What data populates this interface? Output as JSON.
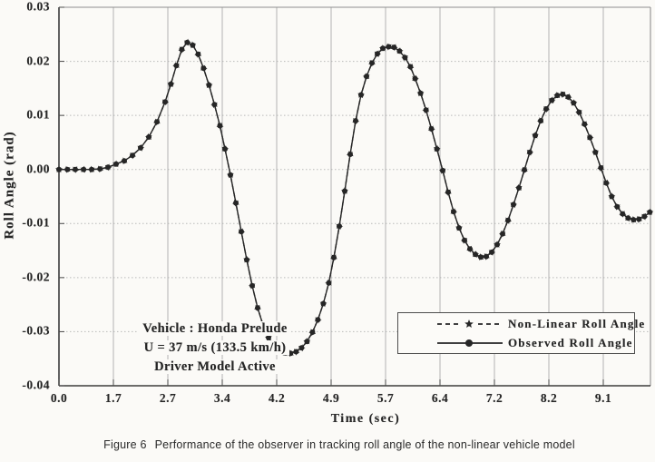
{
  "figure": {
    "label": "Figure 6",
    "caption": "Performance of the observer in tracking roll angle of the non-linear vehicle model"
  },
  "chart_data": {
    "type": "line",
    "title": "",
    "xlabel": "Time (sec)",
    "ylabel": "Roll Angle (rad)",
    "x_tick_labels": [
      "0.0",
      "1.7",
      "2.7",
      "3.4",
      "4.2",
      "4.9",
      "5.7",
      "6.4",
      "7.2",
      "8.2",
      "9.1"
    ],
    "y_tick_labels": [
      "0.03",
      "0.02",
      "0.01",
      "0.00",
      "-0.01",
      "-0.02",
      "-0.03",
      "-0.04"
    ],
    "ylim": [
      -0.04,
      0.03
    ],
    "grid": true,
    "legend_position": "inside lower right",
    "ink_color": "#262626",
    "grid_color": "#ababab",
    "annotation": {
      "lines": [
        "Vehicle : Honda Prelude",
        "U = 37 m/s (133.5 km/h)",
        "Driver Model Active"
      ]
    },
    "x_sec": [
      0.0,
      0.26,
      0.51,
      0.77,
      1.02,
      1.28,
      1.53,
      1.75,
      1.9,
      2.05,
      2.2,
      2.35,
      2.5,
      2.65,
      2.74,
      2.81,
      2.88,
      2.95,
      3.02,
      3.09,
      3.16,
      3.23,
      3.3,
      3.37,
      3.44,
      3.52,
      3.6,
      3.68,
      3.76,
      3.84,
      3.92,
      4.0,
      4.08,
      4.16,
      4.24,
      4.31,
      4.38,
      4.45,
      4.52,
      4.59,
      4.66,
      4.73,
      4.8,
      4.87,
      4.94,
      5.02,
      5.1,
      5.18,
      5.26,
      5.34,
      5.42,
      5.5,
      5.58,
      5.66,
      5.74,
      5.81,
      5.88,
      5.95,
      6.02,
      6.08,
      6.15,
      6.22,
      6.29,
      6.36,
      6.44,
      6.52,
      6.6,
      6.68,
      6.76,
      6.84,
      6.92,
      7.0,
      7.08,
      7.16,
      7.25,
      7.35,
      7.45,
      7.55,
      7.65,
      7.75,
      7.85,
      7.95,
      8.05,
      8.15,
      8.25,
      8.34,
      8.43,
      8.52,
      8.61,
      8.7,
      8.79,
      8.88,
      8.97,
      9.06,
      9.15,
      9.24,
      9.33,
      9.42,
      9.51,
      9.6,
      9.69,
      9.78,
      9.87
    ],
    "series": [
      {
        "name": "Non-Linear Roll Angle",
        "line_style": "dashed",
        "marker": "star",
        "color": "#262626",
        "values": [
          0.0,
          0.0,
          0.0,
          0.0,
          0.0,
          0.0001,
          0.0004,
          0.001,
          0.0016,
          0.0026,
          0.004,
          0.006,
          0.0088,
          0.0125,
          0.0158,
          0.0192,
          0.0222,
          0.0235,
          0.023,
          0.0213,
          0.0187,
          0.0156,
          0.012,
          0.0081,
          0.0038,
          -0.001,
          -0.0062,
          -0.0115,
          -0.0167,
          -0.0215,
          -0.0256,
          -0.0288,
          -0.0311,
          -0.0326,
          -0.0335,
          -0.0339,
          -0.034,
          -0.0337,
          -0.033,
          -0.0318,
          -0.0301,
          -0.0278,
          -0.0248,
          -0.021,
          -0.0163,
          -0.0105,
          -0.004,
          0.0028,
          0.009,
          0.0138,
          0.0172,
          0.0197,
          0.0214,
          0.0224,
          0.0227,
          0.0226,
          0.0219,
          0.0207,
          0.019,
          0.0168,
          0.0141,
          0.011,
          0.0075,
          0.0038,
          -0.0002,
          -0.0042,
          -0.0078,
          -0.0108,
          -0.0131,
          -0.0147,
          -0.0157,
          -0.0162,
          -0.0161,
          -0.0153,
          -0.0139,
          -0.0119,
          -0.0094,
          -0.0065,
          -0.0034,
          -0.0001,
          0.0032,
          0.0063,
          0.009,
          0.0112,
          0.0128,
          0.0137,
          0.0139,
          0.0134,
          0.0123,
          0.0106,
          0.0084,
          0.0059,
          0.0032,
          0.0003,
          -0.0025,
          -0.005,
          -0.0069,
          -0.0082,
          -0.009,
          -0.0093,
          -0.0092,
          -0.0087,
          -0.0079
        ]
      },
      {
        "name": "Observed Roll Angle",
        "line_style": "solid",
        "marker": "circle",
        "color": "#262626",
        "values": [
          0.0,
          0.0,
          0.0,
          0.0,
          0.0,
          0.0001,
          0.0004,
          0.001,
          0.0016,
          0.0026,
          0.004,
          0.006,
          0.0088,
          0.0125,
          0.0158,
          0.0192,
          0.0222,
          0.0235,
          0.023,
          0.0213,
          0.0187,
          0.0156,
          0.012,
          0.0081,
          0.0038,
          -0.001,
          -0.0062,
          -0.0115,
          -0.0167,
          -0.0215,
          -0.0256,
          -0.0288,
          -0.0311,
          -0.0326,
          -0.0335,
          -0.0339,
          -0.034,
          -0.0337,
          -0.033,
          -0.0318,
          -0.0301,
          -0.0278,
          -0.0248,
          -0.021,
          -0.0163,
          -0.0105,
          -0.004,
          0.0028,
          0.009,
          0.0138,
          0.0172,
          0.0197,
          0.0214,
          0.0224,
          0.0227,
          0.0226,
          0.0219,
          0.0207,
          0.019,
          0.0168,
          0.0141,
          0.011,
          0.0075,
          0.0038,
          -0.0002,
          -0.0042,
          -0.0078,
          -0.0108,
          -0.0131,
          -0.0147,
          -0.0157,
          -0.0162,
          -0.0161,
          -0.0153,
          -0.0139,
          -0.0119,
          -0.0094,
          -0.0065,
          -0.0034,
          -0.0001,
          0.0032,
          0.0063,
          0.009,
          0.0112,
          0.0128,
          0.0137,
          0.0139,
          0.0134,
          0.0123,
          0.0106,
          0.0084,
          0.0059,
          0.0032,
          0.0003,
          -0.0025,
          -0.005,
          -0.0069,
          -0.0082,
          -0.009,
          -0.0093,
          -0.0092,
          -0.0087,
          -0.0079
        ]
      }
    ]
  }
}
